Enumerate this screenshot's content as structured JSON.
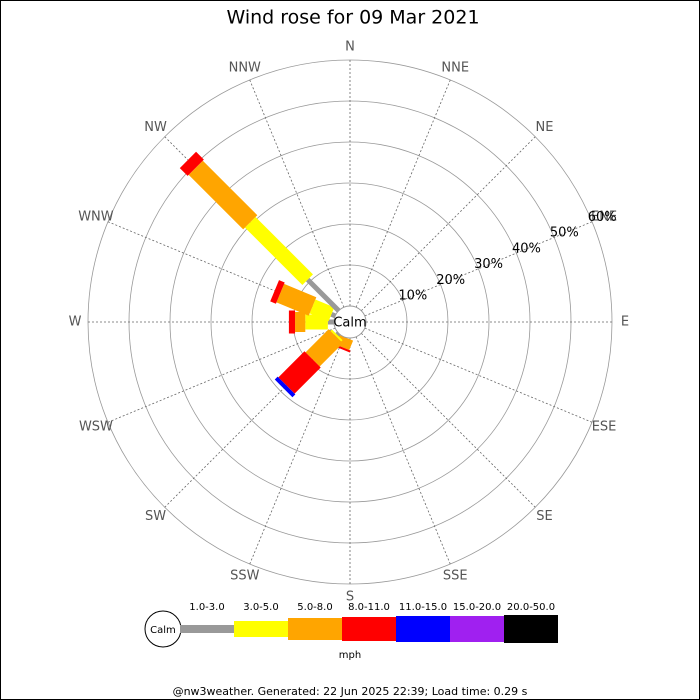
{
  "chart_data": {
    "type": "windrose",
    "title": "Wind rose for 09 Mar 2021",
    "directions": [
      "N",
      "NNE",
      "NE",
      "ENE",
      "E",
      "ESE",
      "SE",
      "SSE",
      "S",
      "SSW",
      "SW",
      "WSW",
      "W",
      "WNW",
      "NW",
      "NNW"
    ],
    "center_label": "Calm",
    "series": [
      {
        "name": "1.0-3.0",
        "color": "#999999",
        "values": [
          0,
          0,
          0,
          0,
          0,
          0,
          0,
          0,
          0,
          0,
          0.5,
          0,
          1.5,
          1,
          10.7,
          0
        ]
      },
      {
        "name": "3.0-5.0",
        "color": "#ffff00",
        "values": [
          0,
          0,
          0,
          0,
          0,
          0,
          0,
          0,
          0,
          0,
          0.5,
          0,
          5.5,
          5,
          19.8,
          0
        ]
      },
      {
        "name": "5.0-8.0",
        "color": "#ffa500",
        "values": [
          0,
          0,
          0,
          0,
          0,
          0,
          0,
          0,
          0,
          2.5,
          8,
          0,
          2.5,
          8.5,
          18.8,
          0
        ]
      },
      {
        "name": "8.0-11.0",
        "color": "#ff0000",
        "values": [
          0,
          0,
          0,
          0,
          0,
          0,
          0,
          0,
          0,
          0.5,
          9,
          0,
          1.5,
          1.5,
          2.7,
          0
        ]
      },
      {
        "name": "11.0-15.0",
        "color": "#0000ff",
        "values": [
          0,
          0,
          0,
          0,
          0,
          0,
          0,
          0,
          0,
          0,
          1,
          0,
          0,
          0,
          0,
          0
        ]
      },
      {
        "name": "15.0-20.0",
        "color": "#a020f0",
        "values": [
          0,
          0,
          0,
          0,
          0,
          0,
          0,
          0,
          0,
          0,
          0,
          0,
          0,
          0,
          0,
          0
        ]
      },
      {
        "name": "20.0-50.0",
        "color": "#000000",
        "values": [
          0,
          0,
          0,
          0,
          0,
          0,
          0,
          0,
          0,
          0,
          0,
          0,
          0,
          0,
          0,
          0
        ]
      }
    ],
    "rlim": [
      0,
      60
    ],
    "rticks": [
      {
        "value": 10,
        "label": "10%"
      },
      {
        "value": 20,
        "label": "20%"
      },
      {
        "value": 30,
        "label": "30%"
      },
      {
        "value": 40,
        "label": "40%"
      },
      {
        "value": 50,
        "label": "50%"
      },
      {
        "value": 60,
        "label": "60%"
      }
    ],
    "legend_calm": "Calm",
    "units": "mph",
    "footer": "@nw3weather. Generated: 22 Jun 2025 22:39; Load time: 0.29 s"
  }
}
